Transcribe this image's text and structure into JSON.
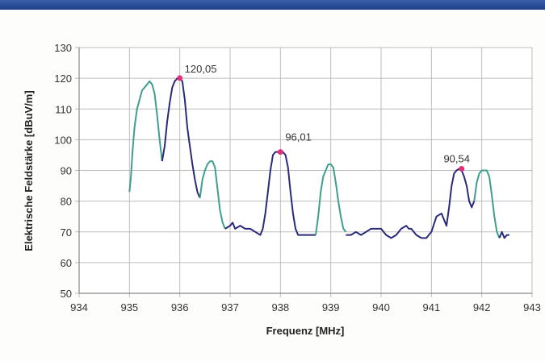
{
  "chart_data": {
    "type": "line",
    "title": "",
    "xlabel": "Frequenz [MHz]",
    "ylabel": "Elektrische Feldstärke [dBuV/m]",
    "xlim": [
      934,
      943
    ],
    "ylim": [
      50,
      130
    ],
    "x_ticks": [
      "934",
      "935",
      "936",
      "937",
      "938",
      "939",
      "940",
      "941",
      "942",
      "943"
    ],
    "y_ticks": [
      "50",
      "60",
      "70",
      "80",
      "90",
      "100",
      "110",
      "120",
      "130"
    ],
    "grid": true,
    "legend": "none",
    "colors": {
      "green": "#3f9e8c",
      "blue": "#2a2a7a",
      "marker": "#e0307a",
      "grid": "#bdbdbd",
      "topbar": "#2b4e98"
    },
    "series": [
      {
        "color": "green",
        "x": [
          935.0,
          935.03,
          935.06,
          935.1,
          935.15,
          935.2,
          935.25,
          935.3,
          935.35,
          935.4,
          935.45,
          935.5,
          935.55,
          935.6,
          935.65
        ],
        "y": [
          83,
          88,
          96,
          104,
          110,
          113,
          116,
          117,
          118,
          119,
          118,
          115,
          108,
          100,
          93
        ]
      },
      {
        "color": "blue",
        "x": [
          935.65,
          935.7,
          935.75,
          935.8,
          935.85,
          935.9,
          935.95,
          936.0,
          936.05,
          936.1,
          936.15,
          936.2,
          936.25,
          936.3,
          936.35,
          936.4
        ],
        "y": [
          93,
          98,
          106,
          112,
          117,
          119,
          120,
          120.05,
          119,
          113,
          104,
          98,
          92,
          87,
          83,
          81
        ]
      },
      {
        "color": "green",
        "x": [
          936.4,
          936.45,
          936.5,
          936.55,
          936.6,
          936.65,
          936.7,
          936.75,
          936.8,
          936.85,
          936.9
        ],
        "y": [
          81,
          87,
          90,
          92,
          93,
          93,
          91,
          84,
          77,
          73,
          71
        ]
      },
      {
        "color": "blue",
        "x": [
          936.9,
          937.0,
          937.05,
          937.1,
          937.2,
          937.3,
          937.4,
          937.5,
          937.6,
          937.65,
          937.7,
          937.75,
          937.8,
          937.85,
          937.9,
          937.95,
          938.0,
          938.05,
          938.1,
          938.15,
          938.2,
          938.25,
          938.3,
          938.35,
          938.4,
          938.5,
          938.6,
          938.7
        ],
        "y": [
          71,
          72,
          73,
          71,
          72,
          71,
          71,
          70,
          69,
          71,
          76,
          83,
          90,
          95,
          96,
          96,
          96.01,
          96,
          95,
          91,
          83,
          76,
          71,
          69,
          69,
          69,
          69,
          69
        ]
      },
      {
        "color": "green",
        "x": [
          938.7,
          938.75,
          938.8,
          938.85,
          938.9,
          938.95,
          939.0,
          939.05,
          939.1,
          939.15,
          939.2,
          939.25,
          939.3
        ],
        "y": [
          69,
          75,
          83,
          88,
          90,
          92,
          92,
          91,
          86,
          80,
          75,
          71,
          70
        ]
      },
      {
        "color": "blue",
        "x": [
          939.3,
          939.4,
          939.5,
          939.6,
          939.7,
          939.8,
          939.9,
          940.0,
          940.1,
          940.2,
          940.3,
          940.4,
          940.5,
          940.55,
          940.6,
          940.7,
          940.8,
          940.9,
          941.0,
          941.1,
          941.2,
          941.3,
          941.35,
          941.4,
          941.45,
          941.5,
          941.55,
          941.6,
          941.65,
          941.7,
          941.75,
          941.8,
          941.85
        ],
        "y": [
          69,
          69,
          70,
          69,
          70,
          71,
          71,
          71,
          69,
          68,
          69,
          71,
          72,
          71,
          71,
          69,
          68,
          68,
          70,
          75,
          76,
          72,
          78,
          85,
          89,
          90,
          90.54,
          90,
          88,
          85,
          80,
          78,
          80
        ]
      },
      {
        "color": "green",
        "x": [
          941.85,
          941.9,
          941.95,
          942.0,
          942.05,
          942.1,
          942.15,
          942.2,
          942.25,
          942.3,
          942.35
        ],
        "y": [
          80,
          86,
          89,
          90,
          90,
          90,
          88,
          82,
          75,
          70,
          68
        ]
      },
      {
        "color": "blue",
        "x": [
          942.35,
          942.4,
          942.45,
          942.5,
          942.55
        ],
        "y": [
          68,
          70,
          68,
          69,
          69
        ]
      }
    ],
    "annotations": [
      {
        "x": 936.0,
        "y": 120.05,
        "label": "120,05"
      },
      {
        "x": 938.0,
        "y": 96.01,
        "label": "96,01"
      },
      {
        "x": 941.6,
        "y": 90.54,
        "label": "90,54"
      }
    ]
  }
}
